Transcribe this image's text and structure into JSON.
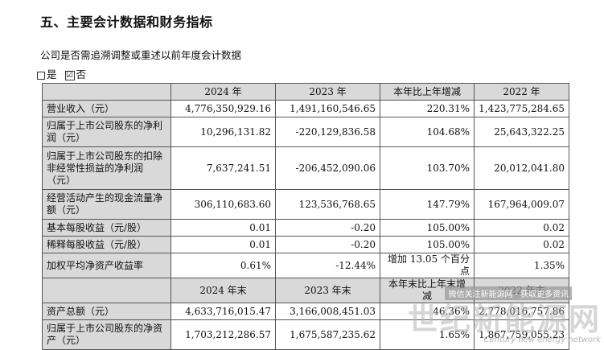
{
  "heading": "五、主要会计数据和财务指标",
  "retro_question": "公司是否需追溯调整或重述以前年度会计数据",
  "options": {
    "yes_label": "是",
    "no_label": "否",
    "no_mark": "☑"
  },
  "table1": {
    "headers": [
      "",
      "2024 年",
      "2023 年",
      "本年比上年增减",
      "2022 年"
    ],
    "rows": [
      {
        "label": "营业收入（元）",
        "values": [
          "4,776,350,929.16",
          "1,491,160,546.65",
          "220.31%",
          "1,423,775,284.65"
        ],
        "h": "h20"
      },
      {
        "label": "归属于上市公司股东的净利润（元）",
        "values": [
          "10,296,131.82",
          "-220,129,836.58",
          "104.68%",
          "25,643,322.25"
        ],
        "h": "h36"
      },
      {
        "label": "归属于上市公司股东的扣除非经常性损益的净利润（元）",
        "values": [
          "7,637,241.51",
          "-206,452,090.06",
          "103.70%",
          "20,012,041.80"
        ],
        "h": "h52"
      },
      {
        "label": "经营活动产生的现金流量净额（元）",
        "values": [
          "306,110,683.60",
          "123,536,768.65",
          "147.79%",
          "167,964,009.07"
        ],
        "h": "h36"
      },
      {
        "label": "基本每股收益（元/股）",
        "values": [
          "0.01",
          "-0.20",
          "105.00%",
          "0.02"
        ],
        "h": "h20"
      },
      {
        "label": "稀释每股收益（元/股）",
        "values": [
          "0.01",
          "-0.20",
          "105.00%",
          "0.02"
        ],
        "h": "h20"
      },
      {
        "label": "加权平均净资产收益率",
        "values": [
          "0.61%",
          "-12.44%",
          "增加 13.05 个百分点",
          "1.35%"
        ],
        "h": "h20"
      }
    ]
  },
  "table2": {
    "headers": [
      "",
      "2024 年末",
      "2023 年末",
      "本年末比上年末增减",
      "2022 年末"
    ],
    "rows": [
      {
        "label": "资产总额（元）",
        "values": [
          "4,633,716,015.47",
          "3,166,008,451.03",
          "46.36%",
          "2,778,016,757.86"
        ],
        "h": "h20"
      },
      {
        "label": "归属于上市公司股东的净资产（元）",
        "values": [
          "1,703,212,286.57",
          "1,675,587,235.62",
          "1.65%",
          "1,867,759,055.23"
        ],
        "h": "h36"
      }
    ]
  },
  "watermark": {
    "banner": "微信关注新能源网 · 获取更多资讯",
    "main": "世纪新能源网",
    "sub": "Century new energy network"
  }
}
